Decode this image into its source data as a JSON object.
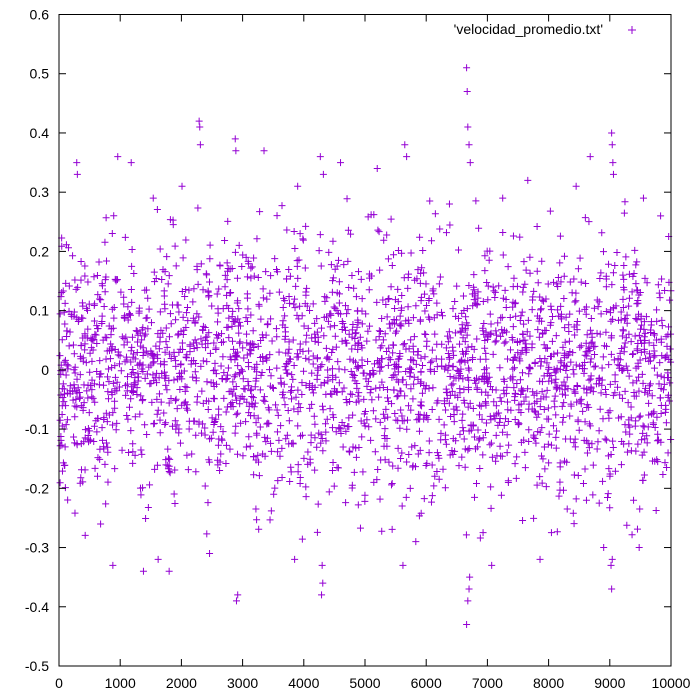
{
  "chart_data": {
    "type": "scatter",
    "title": "",
    "xlabel": "",
    "ylabel": "",
    "xlim": [
      0,
      10000
    ],
    "ylim": [
      -0.5,
      0.6
    ],
    "xticks": [
      0,
      1000,
      2000,
      3000,
      4000,
      5000,
      6000,
      7000,
      8000,
      9000,
      10000
    ],
    "yticks": [
      -0.5,
      -0.4,
      -0.3,
      -0.2,
      -0.1,
      0,
      0.1,
      0.2,
      0.3,
      0.4,
      0.5,
      0.6
    ],
    "xtick_labels": [
      "0",
      "1000",
      "2000",
      "3000",
      "4000",
      "5000",
      "6000",
      "7000",
      "8000",
      "9000",
      "10000"
    ],
    "ytick_labels": [
      "-0.5",
      "-0.4",
      "-0.3",
      "-0.2",
      "-0.1",
      "0",
      "0.1",
      "0.2",
      "0.3",
      "0.4",
      "0.5",
      "0.6"
    ],
    "grid": false,
    "legend_position": "top-right",
    "marker": "plus",
    "color": "#9400d3",
    "series": [
      {
        "name": "'velocidad_promedio.txt'",
        "points": [
          [
            290,
            0.35
          ],
          [
            300,
            0.33
          ],
          [
            960,
            0.36
          ],
          [
            1180,
            0.35
          ],
          [
            2290,
            0.42
          ],
          [
            2300,
            0.41
          ],
          [
            2310,
            0.38
          ],
          [
            2880,
            0.39
          ],
          [
            2890,
            0.37
          ],
          [
            3350,
            0.37
          ],
          [
            4270,
            0.36
          ],
          [
            4600,
            0.35
          ],
          [
            5650,
            0.38
          ],
          [
            5680,
            0.36
          ],
          [
            6660,
            0.51
          ],
          [
            6670,
            0.47
          ],
          [
            6680,
            0.41
          ],
          [
            6700,
            0.38
          ],
          [
            6720,
            0.35
          ],
          [
            7660,
            0.32
          ],
          [
            8680,
            0.36
          ],
          [
            9030,
            0.4
          ],
          [
            9040,
            0.38
          ],
          [
            9050,
            0.35
          ],
          [
            9060,
            0.33
          ],
          [
            9550,
            0.29
          ],
          [
            1540,
            0.29
          ],
          [
            2010,
            0.31
          ],
          [
            3900,
            0.31
          ],
          [
            4320,
            0.33
          ],
          [
            5200,
            0.34
          ],
          [
            6380,
            0.28
          ],
          [
            7250,
            0.29
          ],
          [
            8450,
            0.31
          ],
          [
            9830,
            0.26
          ],
          [
            1800,
            -0.34
          ],
          [
            1380,
            -0.34
          ],
          [
            2900,
            -0.39
          ],
          [
            2920,
            -0.38
          ],
          [
            3850,
            -0.32
          ],
          [
            4290,
            -0.38
          ],
          [
            4310,
            -0.36
          ],
          [
            4300,
            -0.33
          ],
          [
            6660,
            -0.43
          ],
          [
            6680,
            -0.39
          ],
          [
            6700,
            -0.37
          ],
          [
            6710,
            -0.35
          ],
          [
            7070,
            -0.33
          ],
          [
            9020,
            -0.33
          ],
          [
            9030,
            -0.37
          ],
          [
            9040,
            -0.32
          ],
          [
            880,
            -0.33
          ],
          [
            1620,
            -0.32
          ],
          [
            5620,
            -0.33
          ],
          [
            7860,
            -0.32
          ],
          [
            9480,
            -0.3
          ],
          [
            8900,
            -0.3
          ],
          [
            2460,
            -0.31
          ],
          [
            5830,
            -0.29
          ]
        ]
      }
    ]
  }
}
